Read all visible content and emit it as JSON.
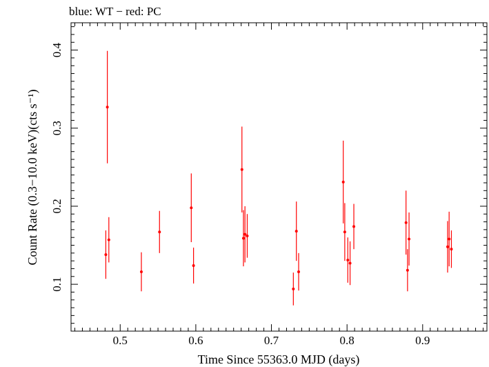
{
  "chart_data": {
    "type": "scatter",
    "title": "blue: WT − red: PC",
    "xlabel": "Time Since 55363.0 MJD (days)",
    "ylabel": "Count Rate (0.3−10.0 keV)(cts s⁻¹)",
    "xlim": [
      0.435,
      0.985
    ],
    "ylim": [
      0.04,
      0.435
    ],
    "xticks": [
      0.5,
      0.6,
      0.7,
      0.8,
      0.9
    ],
    "xtick_labels": [
      "0.5",
      "0.6",
      "0.7",
      "0.8",
      "0.9"
    ],
    "yticks": [
      0.1,
      0.2,
      0.3,
      0.4
    ],
    "ytick_labels": [
      "0.1",
      "0.2",
      "0.3",
      "0.4"
    ],
    "grid": false,
    "series": [
      {
        "name": "PC",
        "color": "#ff0000",
        "points": [
          {
            "x": 0.481,
            "y": 0.138,
            "err": 0.031
          },
          {
            "x": 0.483,
            "y": 0.327,
            "err": 0.072
          },
          {
            "x": 0.485,
            "y": 0.157,
            "err": 0.029
          },
          {
            "x": 0.528,
            "y": 0.116,
            "err": 0.025
          },
          {
            "x": 0.552,
            "y": 0.167,
            "err": 0.027
          },
          {
            "x": 0.594,
            "y": 0.198,
            "err": 0.044
          },
          {
            "x": 0.597,
            "y": 0.124,
            "err": 0.023
          },
          {
            "x": 0.661,
            "y": 0.247,
            "err": 0.055
          },
          {
            "x": 0.663,
            "y": 0.159,
            "err": 0.036
          },
          {
            "x": 0.665,
            "y": 0.164,
            "err": 0.036
          },
          {
            "x": 0.668,
            "y": 0.162,
            "err": 0.028
          },
          {
            "x": 0.729,
            "y": 0.094,
            "err": 0.021
          },
          {
            "x": 0.733,
            "y": 0.168,
            "err": 0.038
          },
          {
            "x": 0.736,
            "y": 0.116,
            "err": 0.024
          },
          {
            "x": 0.795,
            "y": 0.231,
            "err": 0.053
          },
          {
            "x": 0.797,
            "y": 0.167,
            "err": 0.037
          },
          {
            "x": 0.801,
            "y": 0.131,
            "err": 0.029
          },
          {
            "x": 0.804,
            "y": 0.127,
            "err": 0.028
          },
          {
            "x": 0.809,
            "y": 0.174,
            "err": 0.029
          },
          {
            "x": 0.878,
            "y": 0.179,
            "err": 0.041
          },
          {
            "x": 0.88,
            "y": 0.118,
            "err": 0.027
          },
          {
            "x": 0.882,
            "y": 0.158,
            "err": 0.034
          },
          {
            "x": 0.933,
            "y": 0.148,
            "err": 0.033
          },
          {
            "x": 0.935,
            "y": 0.158,
            "err": 0.035
          },
          {
            "x": 0.938,
            "y": 0.145,
            "err": 0.024
          }
        ]
      }
    ]
  }
}
